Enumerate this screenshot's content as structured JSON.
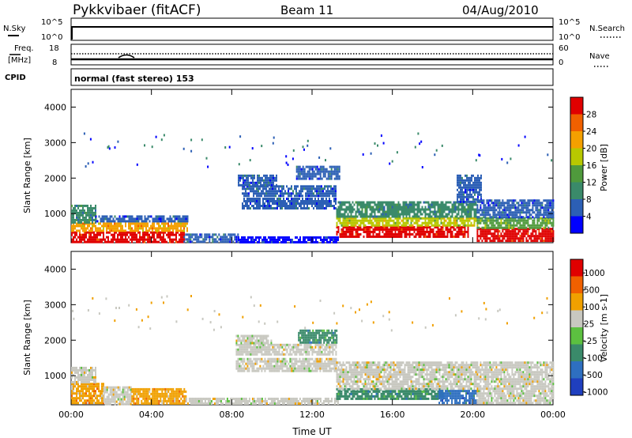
{
  "header": {
    "station": "Pykkvibaer (fitACF)",
    "beam": "Beam 11",
    "date": "04/Aug/2010"
  },
  "panels": {
    "nsky_label": "N.Sky",
    "nsky_ticks": [
      "10^5",
      "10^0"
    ],
    "nsearch_label": "N.Search",
    "nsearch_ticks": [
      "10^5",
      "10^0"
    ],
    "freq_label": "Freq.",
    "freq_unit": "[MHz]",
    "freq_ticks": [
      "18",
      "8"
    ],
    "nave_label": "Nave",
    "nave_ticks": [
      "60",
      "0"
    ],
    "cpid_label": "CPID",
    "cpid_text": "normal (fast stereo) 153"
  },
  "chart_data": [
    {
      "type": "heatmap",
      "name": "power",
      "ylabel": "Slant Range [km]",
      "xlabel": "",
      "xticks": [
        "00:00",
        "04:00",
        "08:00",
        "12:00",
        "16:00",
        "20:00",
        "00:00"
      ],
      "yticks": [
        1000,
        2000,
        3000,
        4000
      ],
      "xlim_hours": [
        0,
        24
      ],
      "ylim_km": [
        180,
        4500
      ],
      "colorbar": {
        "label": "Power [dB]",
        "ticks": [
          "4",
          "8",
          "12",
          "16",
          "20",
          "24",
          "28"
        ],
        "colors": [
          "#0000ff",
          "#2c5fb5",
          "#3a8a6a",
          "#4f9a3c",
          "#b8c800",
          "#f4a000",
          "#f06000",
          "#e00000"
        ]
      },
      "regions": [
        {
          "t0": 0.0,
          "t1": 5.6,
          "r0": 200,
          "r1": 500,
          "c": 7
        },
        {
          "t0": 0.0,
          "t1": 5.8,
          "r0": 500,
          "r1": 750,
          "c": 5
        },
        {
          "t0": 0.0,
          "t1": 1.2,
          "r0": 750,
          "r1": 1250,
          "c": 2
        },
        {
          "t0": 1.2,
          "t1": 5.8,
          "r0": 750,
          "r1": 950,
          "c": 1
        },
        {
          "t0": 5.6,
          "t1": 8.3,
          "r0": 220,
          "r1": 440,
          "c": 1
        },
        {
          "t0": 8.3,
          "t1": 13.3,
          "r0": 220,
          "r1": 360,
          "c": 0
        },
        {
          "t0": 8.5,
          "t1": 13.2,
          "r0": 1150,
          "r1": 1450,
          "c": 1
        },
        {
          "t0": 8.5,
          "t1": 13.2,
          "r0": 1500,
          "r1": 1800,
          "c": 1
        },
        {
          "t0": 8.3,
          "t1": 10.2,
          "r0": 1800,
          "r1": 2100,
          "c": 1
        },
        {
          "t0": 11.2,
          "t1": 13.4,
          "r0": 1950,
          "r1": 2350,
          "c": 1
        },
        {
          "t0": 13.2,
          "t1": 19.8,
          "r0": 350,
          "r1": 650,
          "c": 7
        },
        {
          "t0": 13.2,
          "t1": 20.2,
          "r0": 650,
          "r1": 900,
          "c": 4
        },
        {
          "t0": 13.2,
          "t1": 20.2,
          "r0": 900,
          "r1": 1350,
          "c": 2
        },
        {
          "t0": 19.2,
          "t1": 20.4,
          "r0": 1350,
          "r1": 2100,
          "c": 1
        },
        {
          "t0": 20.2,
          "t1": 24.0,
          "r0": 250,
          "r1": 600,
          "c": 7
        },
        {
          "t0": 20.2,
          "t1": 24.0,
          "r0": 600,
          "r1": 900,
          "c": 3
        },
        {
          "t0": 20.2,
          "t1": 24.0,
          "r0": 900,
          "r1": 1400,
          "c": 1
        }
      ]
    },
    {
      "type": "heatmap",
      "name": "velocity",
      "ylabel": "Slant Range [km]",
      "xlabel": "Time UT",
      "xticks": [
        "00:00",
        "04:00",
        "08:00",
        "12:00",
        "16:00",
        "20:00",
        "00:00"
      ],
      "yticks": [
        1000,
        2000,
        3000,
        4000
      ],
      "xlim_hours": [
        0,
        24
      ],
      "ylim_km": [
        180,
        4500
      ],
      "colorbar": {
        "label": "Velocity [m s-1]",
        "ticks": [
          "1000",
          "500",
          "100",
          "25",
          "-25",
          "-100",
          "-500",
          "-1000"
        ],
        "colors": [
          "#1f3fbf",
          "#2e6fc0",
          "#3a8a6a",
          "#5cc040",
          "#c8c8c0",
          "#f0a000",
          "#f06000",
          "#e00000"
        ]
      },
      "regions": [
        {
          "t0": 0.0,
          "t1": 1.6,
          "r0": 200,
          "r1": 800,
          "c": 5
        },
        {
          "t0": 0.0,
          "t1": 1.2,
          "r0": 800,
          "r1": 1250,
          "c": 4
        },
        {
          "t0": 1.6,
          "t1": 3.0,
          "r0": 200,
          "r1": 700,
          "c": 4
        },
        {
          "t0": 3.0,
          "t1": 5.7,
          "r0": 200,
          "r1": 650,
          "c": 5
        },
        {
          "t0": 5.7,
          "t1": 13.3,
          "r0": 200,
          "r1": 380,
          "c": 4
        },
        {
          "t0": 8.2,
          "t1": 13.2,
          "r0": 1150,
          "r1": 1500,
          "c": 4
        },
        {
          "t0": 8.2,
          "t1": 13.2,
          "r0": 1600,
          "r1": 1900,
          "c": 4
        },
        {
          "t0": 8.2,
          "t1": 10.0,
          "r0": 1900,
          "r1": 2150,
          "c": 4
        },
        {
          "t0": 11.3,
          "t1": 13.2,
          "r0": 1950,
          "r1": 2300,
          "c": 2
        },
        {
          "t0": 13.2,
          "t1": 18.5,
          "r0": 350,
          "r1": 650,
          "c": 2
        },
        {
          "t0": 13.2,
          "t1": 20.2,
          "r0": 650,
          "r1": 1400,
          "c": 4
        },
        {
          "t0": 18.3,
          "t1": 20.2,
          "r0": 250,
          "r1": 600,
          "c": 1
        },
        {
          "t0": 20.2,
          "t1": 24.0,
          "r0": 250,
          "r1": 1400,
          "c": 4
        }
      ]
    }
  ]
}
